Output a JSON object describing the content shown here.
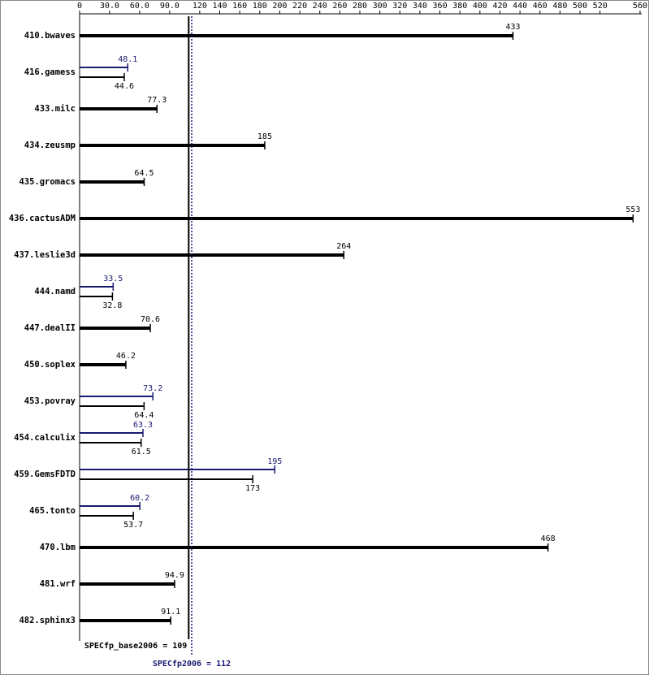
{
  "chart_data": {
    "type": "hbar",
    "categories": [
      "410.bwaves",
      "416.gamess",
      "433.milc",
      "434.zeusmp",
      "435.gromacs",
      "436.cactusADM",
      "437.leslie3d",
      "444.namd",
      "447.dealII",
      "450.soplex",
      "453.povray",
      "454.calculix",
      "459.GemsFDTD",
      "465.tonto",
      "470.lbm",
      "481.wrf",
      "482.sphinx3"
    ],
    "series": [
      {
        "color": "#000000",
        "values": [
          433,
          44.6,
          77.3,
          185,
          64.5,
          553,
          264,
          32.8,
          70.6,
          46.2,
          64.4,
          61.5,
          173,
          53.7,
          468,
          94.9,
          91.1
        ]
      },
      {
        "color": "#191970",
        "values": [
          null,
          48.1,
          null,
          null,
          null,
          null,
          null,
          33.5,
          null,
          null,
          73.2,
          63.3,
          195,
          60.2,
          null,
          null,
          null
        ]
      }
    ],
    "xlim": [
      0,
      560
    ],
    "xticks": [
      0,
      {
        "value": 30,
        "label": "30.0"
      },
      {
        "value": 60,
        "label": "60.0"
      },
      {
        "value": 90,
        "label": "90.0"
      },
      120,
      140,
      160,
      180,
      200,
      220,
      240,
      260,
      280,
      300,
      320,
      340,
      360,
      380,
      400,
      420,
      440,
      460,
      480,
      500,
      520,
      560
    ],
    "reference_lines": [
      {
        "label": "SPECfp_base2006 = 109",
        "value": 109,
        "color": "#000000"
      },
      {
        "label": "SPECfp2006 = 112",
        "value": 112,
        "color": "#191970"
      }
    ]
  }
}
